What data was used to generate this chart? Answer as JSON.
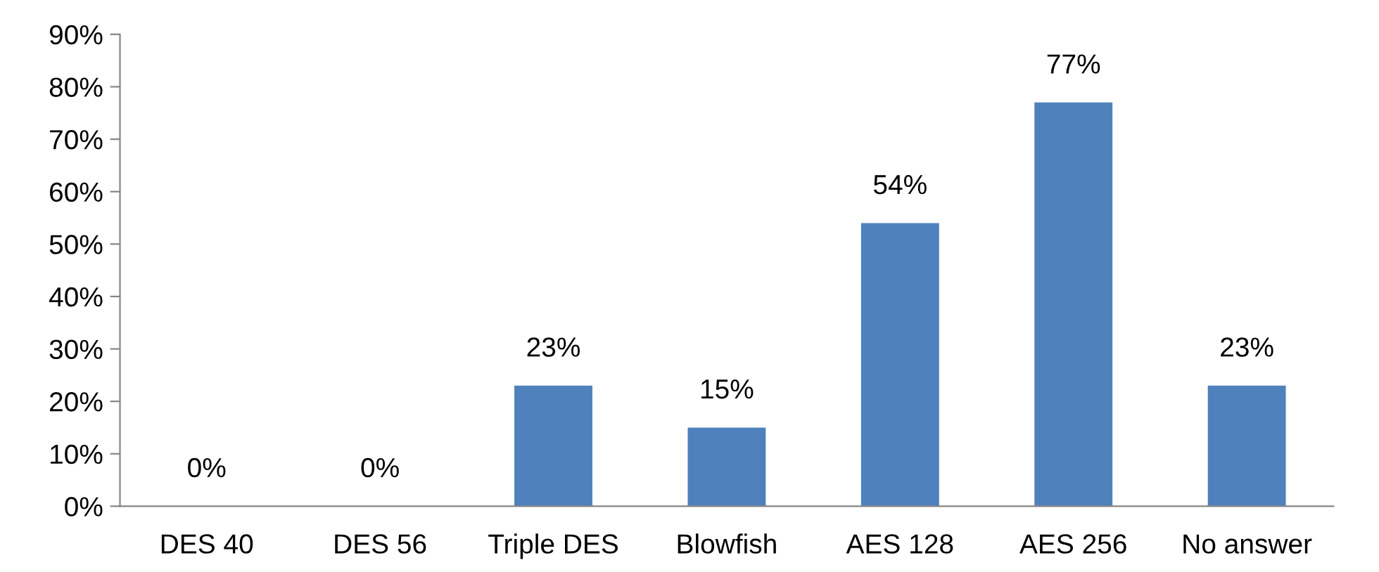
{
  "chart_data": {
    "type": "bar",
    "categories": [
      "DES 40",
      "DES 56",
      "Triple DES",
      "Blowfish",
      "AES 128",
      "AES 256",
      "No answer"
    ],
    "values": [
      0,
      0,
      23,
      15,
      54,
      77,
      23
    ],
    "value_labels": [
      "0%",
      "0%",
      "23%",
      "15%",
      "54%",
      "77%",
      "23%"
    ],
    "color": "#4f81bd",
    "ylim": [
      0,
      90
    ],
    "yticks": [
      {
        "value": 0,
        "label": "0%"
      },
      {
        "value": 10,
        "label": "10%"
      },
      {
        "value": 20,
        "label": "20%"
      },
      {
        "value": 30,
        "label": "30%"
      },
      {
        "value": 40,
        "label": "40%"
      },
      {
        "value": 50,
        "label": "50%"
      },
      {
        "value": 60,
        "label": "60%"
      },
      {
        "value": 70,
        "label": "70%"
      },
      {
        "value": 80,
        "label": "80%"
      },
      {
        "value": 90,
        "label": "90%"
      }
    ],
    "grid": false,
    "legend": false
  }
}
